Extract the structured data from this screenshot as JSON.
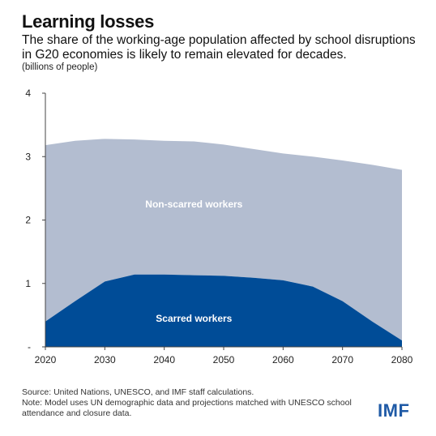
{
  "chart_title": "Learning losses",
  "chart_subtitle": "The share of the working-age population affected by school disruptions in G20 economies is likely to remain elevated for decades.",
  "unit_label": "(billions of people)",
  "source_note": "Source: United Nations, UNESCO, and IMF staff calculations.",
  "model_note": "Note: Model uses UN demographic data and projections matched with UNESCO school attendance and closure data.",
  "logo_text": "IMF",
  "colors": {
    "scarred": "#004C97",
    "non_scarred": "#B3BDD0",
    "logo": "#1F5AA6",
    "axis": "#444444"
  },
  "chart_data": {
    "type": "area",
    "stacked": true,
    "x": [
      2020,
      2025,
      2030,
      2035,
      2040,
      2045,
      2050,
      2055,
      2060,
      2065,
      2070,
      2075,
      2080
    ],
    "xticks": [
      "2020",
      "2030",
      "2040",
      "2050",
      "2060",
      "2070",
      "2080"
    ],
    "yticks": [
      "-",
      "1",
      "2",
      "3",
      "4"
    ],
    "ylim": [
      0,
      4
    ],
    "xlim": [
      2020,
      2080
    ],
    "grid": false,
    "series": [
      {
        "name": "Scarred workers",
        "color": "#004C97",
        "values": [
          0.4,
          0.72,
          1.03,
          1.14,
          1.14,
          1.13,
          1.12,
          1.09,
          1.05,
          0.95,
          0.72,
          0.4,
          0.1
        ]
      },
      {
        "name": "Non-scarred workers",
        "color": "#B3BDD0",
        "values": [
          2.78,
          2.53,
          2.25,
          2.13,
          2.11,
          2.11,
          2.07,
          2.03,
          2.0,
          2.05,
          2.22,
          2.47,
          2.69
        ]
      }
    ],
    "totals": [
      3.18,
      3.25,
      3.28,
      3.27,
      3.25,
      3.24,
      3.19,
      3.12,
      3.05,
      3.0,
      2.94,
      2.87,
      2.79
    ]
  }
}
